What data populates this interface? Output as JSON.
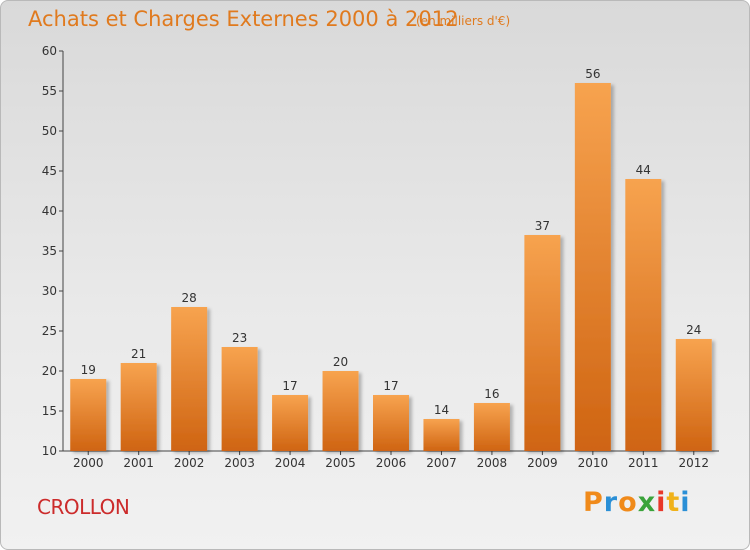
{
  "chart_data": {
    "type": "bar",
    "title": "Achats et Charges Externes 2000 à 2012",
    "subtitle": "(en milliers d'€)",
    "categories": [
      "2000",
      "2001",
      "2002",
      "2003",
      "2004",
      "2005",
      "2006",
      "2007",
      "2008",
      "2009",
      "2010",
      "2011",
      "2012"
    ],
    "values": [
      19,
      21,
      28,
      23,
      17,
      20,
      17,
      14,
      16,
      37,
      56,
      44,
      24
    ],
    "ylim": [
      10,
      60
    ],
    "yticks": [
      10,
      15,
      20,
      25,
      30,
      35,
      40,
      45,
      50,
      55,
      60
    ],
    "grid": false,
    "bar_color_top": "#f7a34f",
    "bar_color_bottom": "#cf6412"
  },
  "footer": {
    "commune": "CROLLON",
    "logo_letters": [
      "P",
      "r",
      "o",
      "x",
      "i",
      "t",
      "i"
    ],
    "logo_colors": [
      "#f08a1a",
      "#2a8fd6",
      "#f08a1a",
      "#3aa33a",
      "#e8382a",
      "#f0b21a",
      "#2a8fd6"
    ]
  },
  "colors": {
    "title": "#e07a1e",
    "commune": "#cc2b2b",
    "axis": "#444444"
  }
}
